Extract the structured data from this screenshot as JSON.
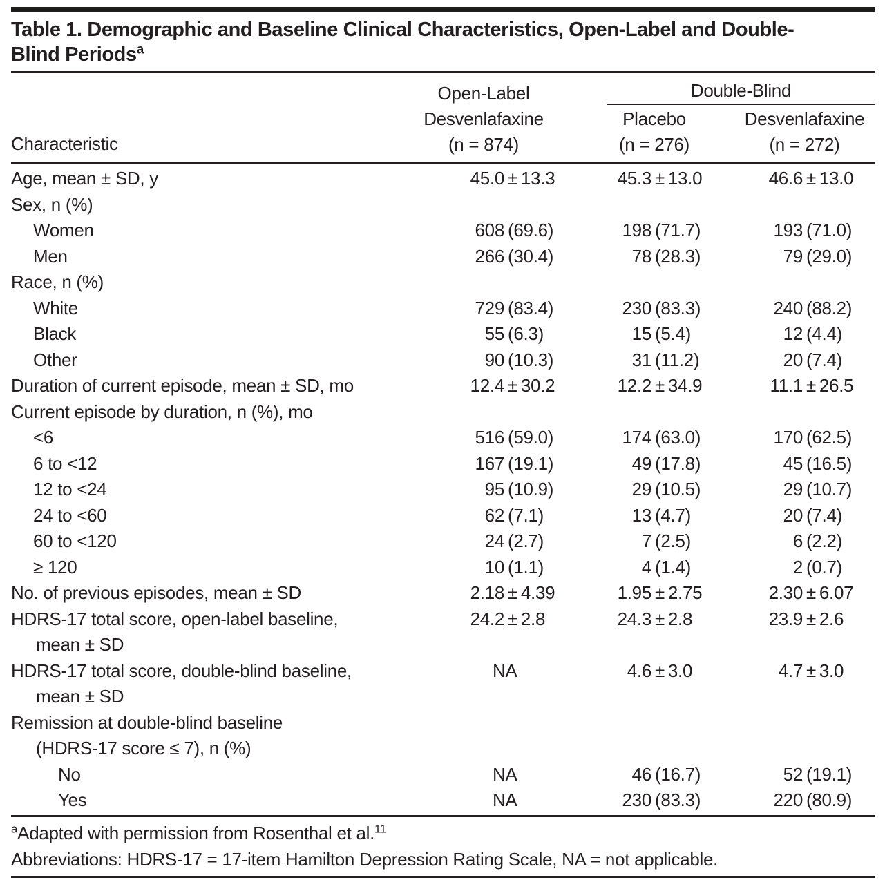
{
  "page": {
    "background": "#ffffff",
    "text_color": "#231f20",
    "rule_color": "#231f20"
  },
  "table": {
    "title": "Table 1. Demographic and Baseline Clinical Characteristics, Open-Label and Double-Blind Periods",
    "title_superscript": "a",
    "header": {
      "characteristic_label": "Characteristic",
      "open_label_group": {
        "lines": [
          "Open-Label",
          "Desvenlafaxine",
          "(n = 874)"
        ]
      },
      "double_blind_group": {
        "label": "Double-Blind",
        "columns": [
          {
            "lines": [
              "Placebo",
              "(n = 276)"
            ]
          },
          {
            "lines": [
              "Desvenlafaxine",
              "(n = 272)"
            ]
          }
        ]
      }
    },
    "rows": [
      {
        "label": "Age, mean ± SD, y",
        "indent": 0,
        "values": [
          "45.0 ± 13.3",
          "45.3 ± 13.0",
          "46.6 ± 13.0"
        ]
      },
      {
        "label": "Sex, n (%)",
        "indent": 0,
        "values": [
          "",
          "",
          ""
        ]
      },
      {
        "label": "Women",
        "indent": 1,
        "values": [
          "608 (69.6)",
          "198 (71.7)",
          "193 (71.0)"
        ]
      },
      {
        "label": "Men",
        "indent": 1,
        "values": [
          "266 (30.4)",
          "78 (28.3)",
          "79 (29.0)"
        ]
      },
      {
        "label": "Race, n (%)",
        "indent": 0,
        "values": [
          "",
          "",
          ""
        ]
      },
      {
        "label": "White",
        "indent": 1,
        "values": [
          "729 (83.4)",
          "230 (83.3)",
          "240 (88.2)"
        ]
      },
      {
        "label": "Black",
        "indent": 1,
        "values": [
          "55 (6.3)",
          "15 (5.4)",
          "12 (4.4)"
        ]
      },
      {
        "label": "Other",
        "indent": 1,
        "values": [
          "90 (10.3)",
          "31 (11.2)",
          "20 (7.4)"
        ]
      },
      {
        "label": "Duration of current episode, mean ± SD, mo",
        "indent": 0,
        "values": [
          "12.4 ± 30.2",
          "12.2 ± 34.9",
          "11.1 ± 26.5"
        ]
      },
      {
        "label": "Current episode by duration, n (%), mo",
        "indent": 0,
        "values": [
          "",
          "",
          ""
        ]
      },
      {
        "label": "<6",
        "indent": 1,
        "values": [
          "516 (59.0)",
          "174 (63.0)",
          "170 (62.5)"
        ]
      },
      {
        "label": "6 to <12",
        "indent": 1,
        "values": [
          "167 (19.1)",
          "49 (17.8)",
          "45 (16.5)"
        ]
      },
      {
        "label": "12 to <24",
        "indent": 1,
        "values": [
          "95 (10.9)",
          "29 (10.5)",
          "29 (10.7)"
        ]
      },
      {
        "label": "24 to <60",
        "indent": 1,
        "values": [
          "62 (7.1)",
          "13 (4.7)",
          "20 (7.4)"
        ]
      },
      {
        "label": "60 to <120",
        "indent": 1,
        "values": [
          "24 (2.7)",
          "7 (2.5)",
          "6 (2.2)"
        ]
      },
      {
        "label": "≥ 120",
        "indent": 1,
        "values": [
          "10 (1.1)",
          "4 (1.4)",
          "2 (0.7)"
        ]
      },
      {
        "label": "No. of previous episodes, mean ± SD",
        "indent": 0,
        "values": [
          "2.18 ± 4.39",
          "1.95 ± 2.75",
          "2.30 ± 6.07"
        ]
      },
      {
        "label": "HDRS-17 total score, open-label baseline,",
        "label2": "mean ± SD",
        "indent": 0,
        "values": [
          "24.2 ± 2.8",
          "24.3 ± 2.8",
          "23.9 ± 2.6"
        ]
      },
      {
        "label": "HDRS-17 total score, double-blind baseline,",
        "label2": "mean ± SD",
        "indent": 0,
        "values": [
          "NA",
          "4.6 ± 3.0",
          "4.7 ± 3.0"
        ]
      },
      {
        "label": "Remission at double-blind baseline",
        "label2": "(HDRS-17 score ≤ 7), n (%)",
        "indent": 0,
        "values": [
          "",
          "",
          ""
        ]
      },
      {
        "label": "No",
        "indent": 2,
        "values": [
          "NA",
          "46 (16.7)",
          "52 (19.1)"
        ]
      },
      {
        "label": "Yes",
        "indent": 2,
        "values": [
          "NA",
          "230 (83.3)",
          "220 (80.9)"
        ]
      }
    ],
    "footnotes": [
      {
        "sup": "a",
        "text": "Adapted with permission from Rosenthal et al.",
        "sup_after": "11"
      },
      {
        "text": "Abbreviations: HDRS-17 = 17-item Hamilton Depression Rating Scale, NA = not applicable."
      }
    ]
  }
}
